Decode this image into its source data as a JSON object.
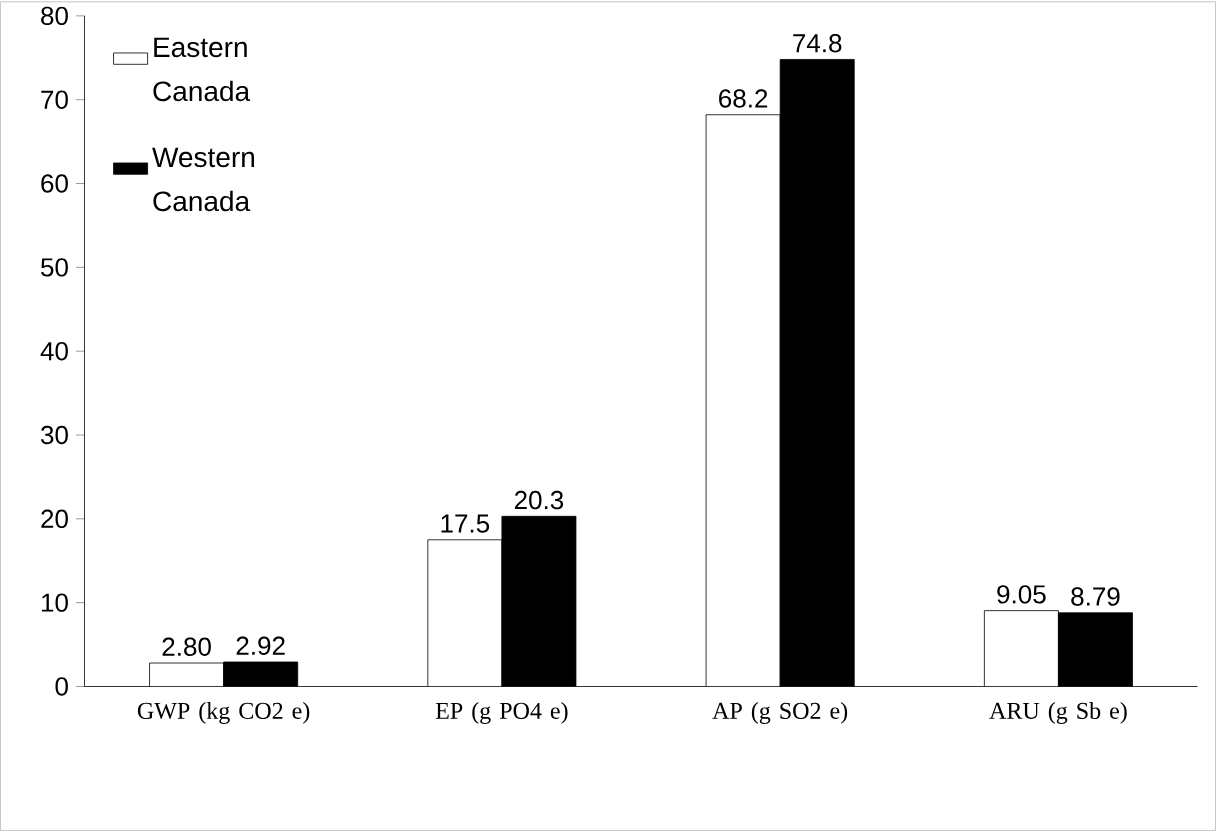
{
  "chart_data": {
    "type": "bar",
    "categories": [
      "GWP (kg CO2 e)",
      "EP (g PO4 e)",
      "AP (g SO2 e)",
      "ARU (g Sb e)"
    ],
    "series": [
      {
        "name": "Eastern Canada",
        "color": "#ffffff",
        "values": [
          2.8,
          17.5,
          68.2,
          9.05
        ],
        "value_labels": [
          "2.80",
          "17.5",
          "68.2",
          "9.05"
        ]
      },
      {
        "name": "Western Canada",
        "color": "#000000",
        "values": [
          2.92,
          20.3,
          74.8,
          8.79
        ],
        "value_labels": [
          "2.92",
          "20.3",
          "74.8",
          "8.79"
        ]
      }
    ],
    "ylim": [
      0,
      80
    ],
    "yticks": [
      0,
      10,
      20,
      30,
      40,
      50,
      60,
      70,
      80
    ],
    "grid": false,
    "legend": "top left"
  }
}
